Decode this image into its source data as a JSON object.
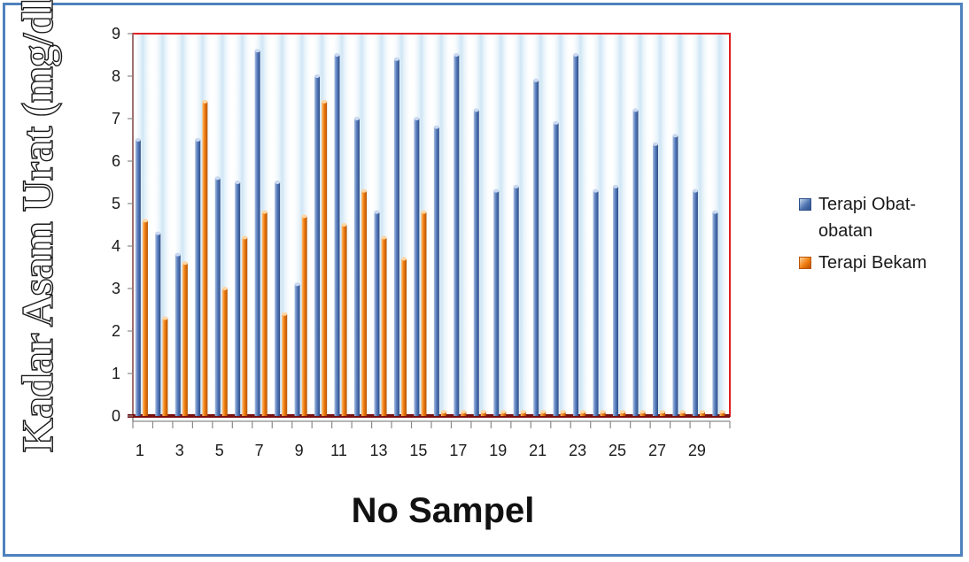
{
  "chart_data": {
    "type": "bar",
    "title": "",
    "xlabel": "No Sampel",
    "ylabel": "Kadar Asam Urat (mg/dl)",
    "ylim": [
      0,
      9
    ],
    "yticks": [
      "0",
      "1",
      "2",
      "3",
      "4",
      "5",
      "6",
      "7",
      "8",
      "9"
    ],
    "categories": [
      1,
      2,
      3,
      4,
      5,
      6,
      7,
      8,
      9,
      10,
      11,
      12,
      13,
      14,
      15,
      16,
      17,
      18,
      19,
      20,
      21,
      22,
      23,
      24,
      25,
      26,
      27,
      28,
      29,
      30
    ],
    "xtick_labels": [
      "1",
      "3",
      "5",
      "7",
      "9",
      "11",
      "13",
      "15",
      "17",
      "19",
      "21",
      "23",
      "25",
      "27",
      "29"
    ],
    "series": [
      {
        "name": "Terapi Obat-obatan",
        "color": "#4f74b2",
        "values": [
          6.5,
          4.3,
          3.8,
          6.5,
          5.6,
          5.5,
          8.6,
          5.5,
          3.1,
          8.0,
          8.5,
          7.0,
          4.8,
          8.4,
          7.0,
          6.8,
          8.5,
          7.2,
          5.3,
          5.4,
          7.9,
          6.9,
          8.5,
          5.3,
          5.4,
          7.2,
          6.4,
          6.6,
          5.3,
          4.8
        ]
      },
      {
        "name": "Terapi Bekam",
        "color": "#f07d10",
        "values": [
          4.6,
          2.3,
          3.6,
          7.4,
          3.0,
          4.2,
          4.8,
          2.4,
          4.7,
          7.4,
          4.5,
          5.3,
          4.2,
          3.7,
          4.8,
          0.1,
          0.1,
          0.1,
          0.1,
          0.1,
          0.1,
          0.1,
          0.1,
          0.1,
          0.1,
          0.1,
          0.1,
          0.1,
          0.1,
          0.1
        ]
      }
    ],
    "legend_position": "right",
    "grid": false,
    "plot_border_color": "#e02020"
  },
  "legend": {
    "series1_line1": "Terapi Obat-",
    "series1_line2": "obatan",
    "series2": "Terapi Bekam"
  }
}
